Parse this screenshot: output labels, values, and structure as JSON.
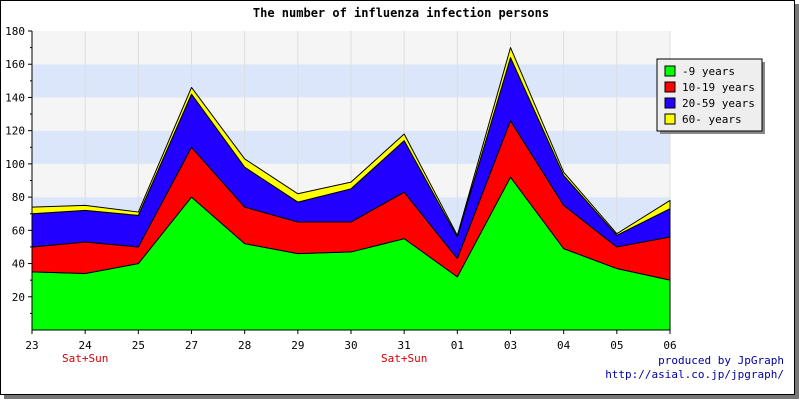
{
  "chart_data": {
    "type": "area",
    "stacked": true,
    "title": "The number of influenza infection persons",
    "categories": [
      "23",
      "24",
      "25",
      "27",
      "28",
      "29",
      "30",
      "31",
      "01",
      "03",
      "04",
      "05",
      "06"
    ],
    "weekend_labels": [
      "",
      "Sat+Sun",
      "",
      "",
      "",
      "",
      "",
      "Sat+Sun",
      "",
      "",
      "",
      "",
      ""
    ],
    "ylim": [
      0,
      180
    ],
    "yticks": [
      20,
      40,
      60,
      80,
      100,
      120,
      140,
      160,
      180
    ],
    "series": [
      {
        "name": "-9 years",
        "color": "#00ff00",
        "values": [
          35,
          34,
          40,
          80,
          52,
          46,
          47,
          55,
          32,
          92,
          49,
          37,
          30
        ]
      },
      {
        "name": "10-19 years",
        "color": "#ff0000",
        "values": [
          15,
          19,
          10,
          30,
          22,
          19,
          18,
          28,
          11,
          34,
          26,
          13,
          26
        ]
      },
      {
        "name": "20-59 years",
        "color": "#2200ff",
        "values": [
          20,
          19,
          19,
          32,
          24,
          12,
          20,
          31,
          13,
          38,
          18,
          7,
          17
        ]
      },
      {
        "name": "60- years",
        "color": "#ffff00",
        "values": [
          4,
          3,
          2,
          4,
          5,
          5,
          4,
          4,
          1,
          6,
          2,
          1,
          5
        ]
      }
    ],
    "legend_position": "top-right",
    "band_colors": [
      "#f5f5f5",
      "#dce6fb"
    ],
    "grid": true
  },
  "credit": {
    "line1": "produced by JpGraph",
    "line2": "http://asial.co.jp/jpgraph/"
  }
}
